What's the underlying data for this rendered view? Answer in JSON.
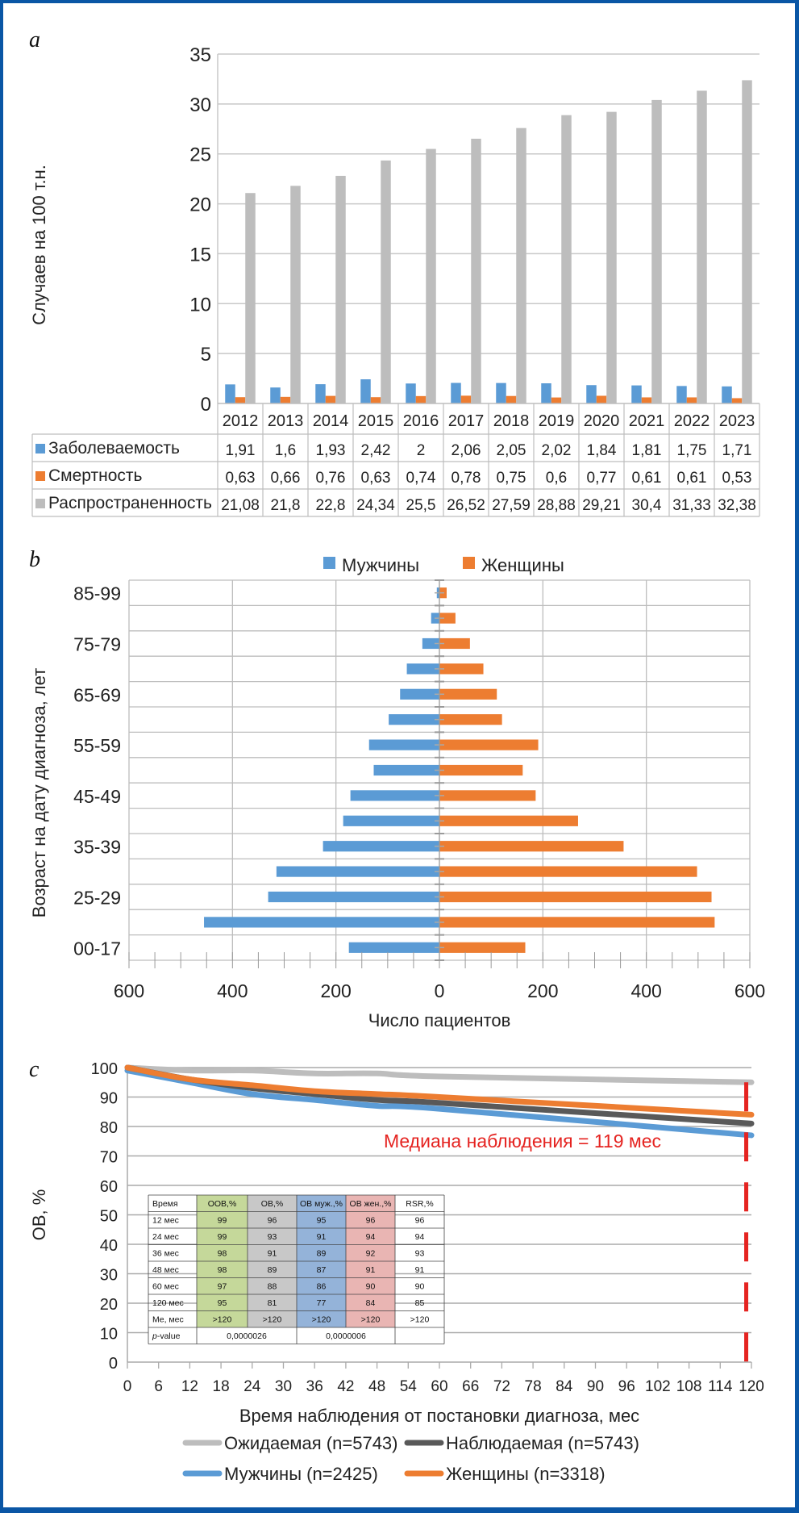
{
  "panels": {
    "a": "a",
    "b": "b",
    "c": "c"
  },
  "chart_data": [
    {
      "type": "bar",
      "id": "incidence_mortality_prevalence",
      "title": "",
      "ylabel": "Случаев на 100 т.н.",
      "xlabel": "",
      "ylim": [
        0,
        35
      ],
      "yticks": [
        "0",
        "5",
        "10",
        "15",
        "20",
        "25",
        "30",
        "35"
      ],
      "grid": true,
      "legend": "data-table-below",
      "categories": [
        "2012",
        "2013",
        "2014",
        "2015",
        "2016",
        "2017",
        "2018",
        "2019",
        "2020",
        "2021",
        "2022",
        "2023"
      ],
      "series": [
        {
          "name": "Заболеваемость",
          "color": "#5b9bd5",
          "values": [
            1.91,
            1.6,
            1.93,
            2.42,
            2,
            2.06,
            2.05,
            2.02,
            1.84,
            1.81,
            1.75,
            1.71
          ],
          "labels": [
            "1,91",
            "1,6",
            "1,93",
            "2,42",
            "2",
            "2,06",
            "2,05",
            "2,02",
            "1,84",
            "1,81",
            "1,75",
            "1,71"
          ]
        },
        {
          "name": "Смертность",
          "color": "#ed7d31",
          "values": [
            0.63,
            0.66,
            0.76,
            0.63,
            0.74,
            0.78,
            0.75,
            0.6,
            0.77,
            0.61,
            0.61,
            0.53
          ],
          "labels": [
            "0,63",
            "0,66",
            "0,76",
            "0,63",
            "0,74",
            "0,78",
            "0,75",
            "0,6",
            "0,77",
            "0,61",
            "0,61",
            "0,53"
          ]
        },
        {
          "name": "Распространенность",
          "color": "#bdbdbd",
          "values": [
            21.08,
            21.8,
            22.8,
            24.34,
            25.5,
            26.52,
            27.59,
            28.88,
            29.21,
            30.4,
            31.33,
            32.38
          ],
          "labels": [
            "21,08",
            "21,8",
            "22,8",
            "24,34",
            "25,5",
            "26,52",
            "27,59",
            "28,88",
            "29,21",
            "30,4",
            "31,33",
            "32,38"
          ]
        }
      ]
    },
    {
      "type": "bar",
      "id": "age_pyramid",
      "orientation": "horizontal",
      "title": "",
      "xlabel": "Число пациентов",
      "ylabel": "Возраст на дату диагноза, лет",
      "xlim": [
        -600,
        600
      ],
      "xticks": [
        "600",
        "400",
        "200",
        "0",
        "200",
        "400",
        "600"
      ],
      "grid": true,
      "legend": "top-center",
      "categories": [
        "00-17",
        "18-24",
        "25-29",
        "30-34",
        "35-39",
        "40-44",
        "45-49",
        "50-54",
        "55-59",
        "60-64",
        "65-69",
        "70-74",
        "75-79",
        "80-84",
        "85-99"
      ],
      "visible_category_labels": [
        "00-17",
        "25-29",
        "35-39",
        "45-49",
        "55-59",
        "65-69",
        "75-79",
        "85-99"
      ],
      "series": [
        {
          "name": "Мужчины",
          "color": "#5b9bd5",
          "values": [
            175,
            455,
            331,
            315,
            225,
            186,
            172,
            127,
            136,
            98,
            76,
            63,
            33,
            16,
            5
          ]
        },
        {
          "name": "Женщины",
          "color": "#ed7d31",
          "values": [
            166,
            532,
            526,
            498,
            356,
            268,
            186,
            161,
            191,
            121,
            111,
            85,
            59,
            31,
            14
          ]
        }
      ]
    },
    {
      "type": "line",
      "id": "overall_survival",
      "title": "",
      "xlabel": "Время наблюдения от постановки диагноза, мес",
      "ylabel": "ОВ, %",
      "xlim": [
        0,
        120
      ],
      "ylim": [
        0,
        100
      ],
      "xticks": [
        "0",
        "6",
        "12",
        "18",
        "24",
        "30",
        "36",
        "42",
        "48",
        "54",
        "60",
        "66",
        "72",
        "78",
        "84",
        "90",
        "96",
        "102",
        "108",
        "114",
        "120"
      ],
      "yticks": [
        "0",
        "10",
        "20",
        "30",
        "40",
        "50",
        "60",
        "70",
        "80",
        "90",
        "100"
      ],
      "grid": true,
      "legend": "bottom",
      "annotation": "Медиана наблюдения = 119 мес",
      "median_followup_months": 119,
      "series": [
        {
          "name": "Ожидаемая (n=5743)",
          "color": "#bdbdbd",
          "x": [
            0,
            12,
            24,
            36,
            48,
            60,
            120
          ],
          "y": [
            100,
            99,
            99,
            98,
            98,
            97,
            95
          ]
        },
        {
          "name": "Наблюдаемая (n=5743)",
          "color": "#595959",
          "x": [
            0,
            12,
            24,
            36,
            48,
            60,
            120
          ],
          "y": [
            100,
            96,
            93,
            91,
            89,
            88,
            81
          ]
        },
        {
          "name": "Мужчины (n=2425)",
          "color": "#5b9bd5",
          "x": [
            0,
            12,
            24,
            36,
            48,
            60,
            120
          ],
          "y": [
            99,
            95,
            91,
            89,
            87,
            86,
            77
          ]
        },
        {
          "name": "Женщины (n=3318)",
          "color": "#ed7d31",
          "x": [
            0,
            12,
            24,
            36,
            48,
            60,
            120
          ],
          "y": [
            100,
            96,
            94,
            92,
            91,
            90,
            84
          ]
        }
      ],
      "inset_table": {
        "headers": [
          "Время",
          "ООВ,%",
          "ОВ,%",
          "ОВ муж.,%",
          "ОВ жен.,%",
          "RSR,%"
        ],
        "header_colors": [
          "#ffffff",
          "#c5d89a",
          "#c8c8c8",
          "#94b3d9",
          "#e9b5b3",
          "#ffffff"
        ],
        "rows": [
          [
            "12 мес",
            "99",
            "96",
            "95",
            "96",
            "96"
          ],
          [
            "24 мес",
            "99",
            "93",
            "91",
            "94",
            "94"
          ],
          [
            "36 мес",
            "98",
            "91",
            "89",
            "92",
            "93"
          ],
          [
            "48 мес",
            "98",
            "89",
            "87",
            "91",
            "91"
          ],
          [
            "60 мес",
            "97",
            "88",
            "86",
            "90",
            "90"
          ],
          [
            "120 мес",
            "95",
            "81",
            "77",
            "84",
            "85"
          ],
          [
            "Me, мес",
            ">120",
            ">120",
            ">120",
            ">120",
            ">120"
          ]
        ],
        "pvalue_row": {
          "label_prefix": "p",
          "label_suffix": "-value",
          "v1": "0,0000026",
          "v2": "0,0000006",
          "v3": ""
        }
      }
    }
  ]
}
